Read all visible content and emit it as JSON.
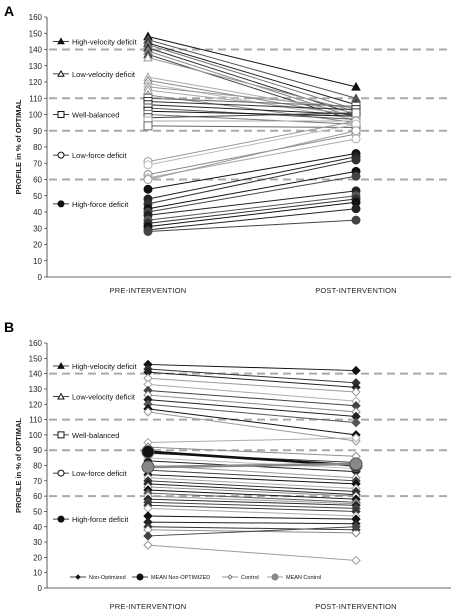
{
  "chart_data": [
    {
      "type": "line",
      "panel": "A",
      "ylabel": "PROFILE in % of OPTIMAL",
      "categories": [
        "PRE-INTERVENTION",
        "POST-INTERVENTION"
      ],
      "ylim": [
        0,
        160
      ],
      "yticks": [
        0,
        10,
        20,
        30,
        40,
        50,
        60,
        70,
        80,
        90,
        100,
        110,
        120,
        130,
        140,
        150,
        160
      ],
      "reference_lines": [
        60,
        90,
        110,
        140
      ],
      "annotations": [
        {
          "label": "High-velocity deficit",
          "y": 145,
          "marker": "triangle-filled"
        },
        {
          "label": "Low-velocity deficit",
          "y": 125,
          "marker": "triangle-open"
        },
        {
          "label": "Well-balanced",
          "y": 100,
          "marker": "square-open"
        },
        {
          "label": "Low-force deficit",
          "y": 75,
          "marker": "circle-open"
        },
        {
          "label": "High-force deficit",
          "y": 45,
          "marker": "circle-filled"
        }
      ],
      "pairs": [
        {
          "pre": 148,
          "post": 117,
          "marker": "triangle-filled",
          "color": "#111"
        },
        {
          "pre": 146,
          "post": 110,
          "marker": "triangle-filled",
          "color": "#555"
        },
        {
          "pre": 144,
          "post": 106,
          "marker": "triangle-filled",
          "color": "#222"
        },
        {
          "pre": 143,
          "post": 103,
          "marker": "triangle-filled",
          "color": "#777"
        },
        {
          "pre": 141,
          "post": 100,
          "marker": "triangle-filled",
          "color": "#333"
        },
        {
          "pre": 139,
          "post": 98,
          "marker": "triangle-filled",
          "color": "#888"
        },
        {
          "pre": 137,
          "post": 96,
          "marker": "triangle-filled",
          "color": "#444"
        },
        {
          "pre": 135,
          "post": 102,
          "marker": "triangle-open",
          "color": "#999"
        },
        {
          "pre": 123,
          "post": 101,
          "marker": "triangle-open",
          "color": "#aaa"
        },
        {
          "pre": 121,
          "post": 99,
          "marker": "triangle-open",
          "color": "#888"
        },
        {
          "pre": 119,
          "post": 97,
          "marker": "triangle-open",
          "color": "#bbb"
        },
        {
          "pre": 117,
          "post": 104,
          "marker": "triangle-open",
          "color": "#999"
        },
        {
          "pre": 115,
          "post": 100,
          "marker": "triangle-open",
          "color": "#aaa"
        },
        {
          "pre": 112,
          "post": 95,
          "marker": "triangle-open",
          "color": "#888"
        },
        {
          "pre": 110,
          "post": 105,
          "marker": "square-open",
          "color": "#666"
        },
        {
          "pre": 108,
          "post": 103,
          "marker": "square-open",
          "color": "#333"
        },
        {
          "pre": 106,
          "post": 100,
          "marker": "square-open",
          "color": "#222"
        },
        {
          "pre": 104,
          "post": 97,
          "marker": "square-open",
          "color": "#555"
        },
        {
          "pre": 102,
          "post": 99,
          "marker": "square-open",
          "color": "#111"
        },
        {
          "pre": 100,
          "post": 94,
          "marker": "square-open",
          "color": "#777"
        },
        {
          "pre": 98,
          "post": 101,
          "marker": "square-open",
          "color": "#444"
        },
        {
          "pre": 96,
          "post": 96,
          "marker": "square-open",
          "color": "#aaa"
        },
        {
          "pre": 93,
          "post": 92,
          "marker": "square-open",
          "color": "#666"
        },
        {
          "pre": 71,
          "post": 96,
          "marker": "circle-open",
          "color": "#999"
        },
        {
          "pre": 69,
          "post": 94,
          "marker": "circle-open",
          "color": "#bbb"
        },
        {
          "pre": 63,
          "post": 88,
          "marker": "circle-open",
          "color": "#888"
        },
        {
          "pre": 61,
          "post": 85,
          "marker": "circle-open",
          "color": "#aaa"
        },
        {
          "pre": 60,
          "post": 90,
          "marker": "circle-open",
          "color": "#999"
        },
        {
          "pre": 54,
          "post": 76,
          "marker": "circle-filled",
          "color": "#111"
        },
        {
          "pre": 48,
          "post": 74,
          "marker": "circle-filled",
          "color": "#222"
        },
        {
          "pre": 45,
          "post": 72,
          "marker": "circle-filled",
          "color": "#333"
        },
        {
          "pre": 42,
          "post": 65,
          "marker": "circle-filled",
          "color": "#111"
        },
        {
          "pre": 40,
          "post": 62,
          "marker": "circle-filled",
          "color": "#444"
        },
        {
          "pre": 38,
          "post": 53,
          "marker": "circle-filled",
          "color": "#222"
        },
        {
          "pre": 35,
          "post": 50,
          "marker": "circle-filled",
          "color": "#555"
        },
        {
          "pre": 33,
          "post": 48,
          "marker": "circle-filled",
          "color": "#333"
        },
        {
          "pre": 31,
          "post": 46,
          "marker": "circle-filled",
          "color": "#111"
        },
        {
          "pre": 29,
          "post": 42,
          "marker": "circle-filled",
          "color": "#222"
        },
        {
          "pre": 28,
          "post": 35,
          "marker": "circle-filled",
          "color": "#444"
        }
      ]
    },
    {
      "type": "line",
      "panel": "B",
      "ylabel": "PROFILE in % of OPTIMAL",
      "categories": [
        "PRE-INTERVENTION",
        "POST-INTERVENTION"
      ],
      "ylim": [
        0,
        160
      ],
      "yticks": [
        0,
        10,
        20,
        30,
        40,
        50,
        60,
        70,
        80,
        90,
        100,
        110,
        120,
        130,
        140,
        150,
        160
      ],
      "reference_lines": [
        60,
        90,
        110,
        140
      ],
      "annotations": [
        {
          "label": "High-velocity deficit",
          "y": 145,
          "marker": "triangle-filled"
        },
        {
          "label": "Low-velocity deficit",
          "y": 125,
          "marker": "triangle-open"
        },
        {
          "label": "Well-balanced",
          "y": 100,
          "marker": "square-open"
        },
        {
          "label": "Low-force deficit",
          "y": 75,
          "marker": "circle-open"
        },
        {
          "label": "High-force deficit",
          "y": 45,
          "marker": "circle-filled"
        }
      ],
      "legend": [
        {
          "name": "Non-Optimized",
          "marker": "diamond-small-filled"
        },
        {
          "name": "MEAN Non-OPTIMIZED",
          "marker": "circle-large-filled"
        },
        {
          "name": "Control",
          "marker": "diamond-small-open"
        },
        {
          "name": "MEAN Control",
          "marker": "circle-large-gray"
        }
      ],
      "means": [
        {
          "series": "MEAN Non-OPTIMIZED",
          "pre": 89,
          "post": 80,
          "color": "#111"
        },
        {
          "series": "MEAN Control",
          "pre": 79,
          "post": 81,
          "color": "#888"
        }
      ],
      "pairs": [
        {
          "pre": 146,
          "post": 142,
          "marker": "diamond-filled",
          "color": "#111"
        },
        {
          "pre": 143,
          "post": 134,
          "marker": "diamond-filled",
          "color": "#333"
        },
        {
          "pre": 141,
          "post": 131,
          "marker": "diamond-filled",
          "color": "#222"
        },
        {
          "pre": 137,
          "post": 128,
          "marker": "diamond-open",
          "color": "#999"
        },
        {
          "pre": 133,
          "post": 122,
          "marker": "diamond-open",
          "color": "#aaa"
        },
        {
          "pre": 129,
          "post": 119,
          "marker": "diamond-filled",
          "color": "#444"
        },
        {
          "pre": 126,
          "post": 115,
          "marker": "diamond-open",
          "color": "#888"
        },
        {
          "pre": 123,
          "post": 112,
          "marker": "diamond-filled",
          "color": "#222"
        },
        {
          "pre": 120,
          "post": 108,
          "marker": "diamond-filled",
          "color": "#555"
        },
        {
          "pre": 117,
          "post": 100,
          "marker": "diamond-filled",
          "color": "#111"
        },
        {
          "pre": 115,
          "post": 96,
          "marker": "diamond-open",
          "color": "#999"
        },
        {
          "pre": 95,
          "post": 98,
          "marker": "diamond-open",
          "color": "#aaa"
        },
        {
          "pre": 92,
          "post": 86,
          "marker": "diamond-open",
          "color": "#888"
        },
        {
          "pre": 88,
          "post": 82,
          "marker": "diamond-filled",
          "color": "#333"
        },
        {
          "pre": 85,
          "post": 78,
          "marker": "diamond-open",
          "color": "#bbb"
        },
        {
          "pre": 83,
          "post": 76,
          "marker": "diamond-filled",
          "color": "#222"
        },
        {
          "pre": 80,
          "post": 72,
          "marker": "diamond-open",
          "color": "#999"
        },
        {
          "pre": 77,
          "post": 70,
          "marker": "diamond-filled",
          "color": "#444"
        },
        {
          "pre": 74,
          "post": 68,
          "marker": "diamond-filled",
          "color": "#111"
        },
        {
          "pre": 72,
          "post": 65,
          "marker": "diamond-open",
          "color": "#aaa"
        },
        {
          "pre": 70,
          "post": 63,
          "marker": "diamond-filled",
          "color": "#333"
        },
        {
          "pre": 68,
          "post": 61,
          "marker": "diamond-filled",
          "color": "#222"
        },
        {
          "pre": 66,
          "post": 60,
          "marker": "diamond-open",
          "color": "#888"
        },
        {
          "pre": 64,
          "post": 58,
          "marker": "diamond-filled",
          "color": "#111"
        },
        {
          "pre": 62,
          "post": 56,
          "marker": "diamond-filled",
          "color": "#555"
        },
        {
          "pre": 60,
          "post": 55,
          "marker": "diamond-open",
          "color": "#999"
        },
        {
          "pre": 58,
          "post": 54,
          "marker": "diamond-filled",
          "color": "#222"
        },
        {
          "pre": 56,
          "post": 52,
          "marker": "diamond-filled",
          "color": "#444"
        },
        {
          "pre": 54,
          "post": 50,
          "marker": "diamond-filled",
          "color": "#333"
        },
        {
          "pre": 52,
          "post": 47,
          "marker": "diamond-open",
          "color": "#aaa"
        },
        {
          "pre": 47,
          "post": 45,
          "marker": "diamond-filled",
          "color": "#111"
        },
        {
          "pre": 43,
          "post": 42,
          "marker": "diamond-filled",
          "color": "#222"
        },
        {
          "pre": 40,
          "post": 38,
          "marker": "diamond-filled",
          "color": "#333"
        },
        {
          "pre": 38,
          "post": 36,
          "marker": "diamond-open",
          "color": "#888"
        },
        {
          "pre": 34,
          "post": 40,
          "marker": "diamond-filled",
          "color": "#444"
        },
        {
          "pre": 28,
          "post": 18,
          "marker": "diamond-open",
          "color": "#999"
        }
      ]
    }
  ]
}
